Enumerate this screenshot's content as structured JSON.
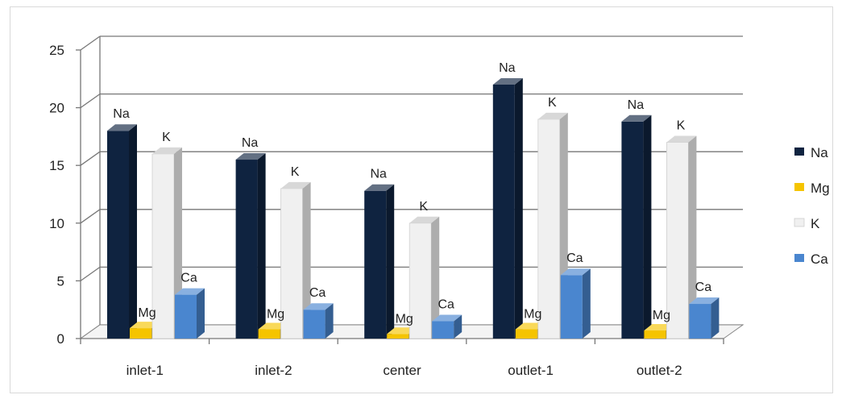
{
  "chart_data": {
    "type": "bar",
    "style": "3d-clustered-column",
    "categories": [
      "inlet-1",
      "inlet-2",
      "center",
      "outlet-1",
      "outlet-2"
    ],
    "series": [
      {
        "name": "Na",
        "color": "#0f2340",
        "values": [
          18.0,
          15.5,
          12.8,
          22.0,
          18.8
        ]
      },
      {
        "name": "Mg",
        "color": "#f5c400",
        "values": [
          0.9,
          0.8,
          0.4,
          0.8,
          0.7
        ]
      },
      {
        "name": "K",
        "color": "#f0f0f0",
        "values": [
          16.0,
          13.0,
          10.0,
          19.0,
          17.0
        ]
      },
      {
        "name": "Ca",
        "color": "#4a86cf",
        "values": [
          3.8,
          2.5,
          1.5,
          5.5,
          3.0
        ]
      }
    ],
    "ylim": [
      0,
      25
    ],
    "yticks": [
      0,
      5,
      10,
      15,
      20,
      25
    ],
    "data_labels": "series-name",
    "grid": true,
    "legend": "right"
  }
}
